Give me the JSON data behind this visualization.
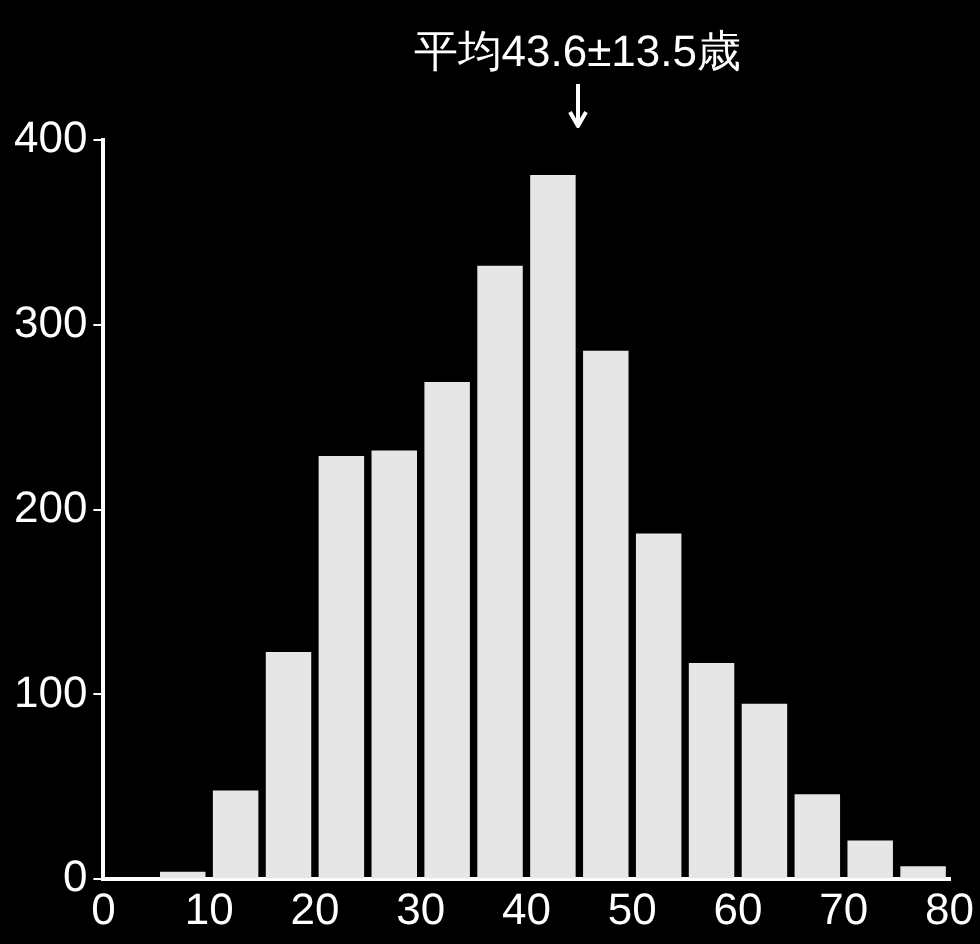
{
  "chart_data": {
    "type": "histogram",
    "bins": [
      0,
      5,
      10,
      15,
      20,
      25,
      30,
      35,
      40,
      45,
      50,
      55,
      60,
      65,
      70,
      75,
      80
    ],
    "values": [
      null,
      4,
      48,
      123,
      229,
      232,
      269,
      332,
      381,
      286,
      187,
      117,
      95,
      46,
      21,
      7
    ],
    "color": "#e6e6e6",
    "xlim": [
      0,
      80
    ],
    "xticks": [
      0,
      10,
      20,
      30,
      40,
      50,
      60,
      70,
      80
    ],
    "ylim": [
      0,
      400
    ],
    "yticks": [
      0,
      100,
      200,
      300,
      400
    ],
    "annotations": [
      "平均43.6±13.5歳"
    ]
  }
}
